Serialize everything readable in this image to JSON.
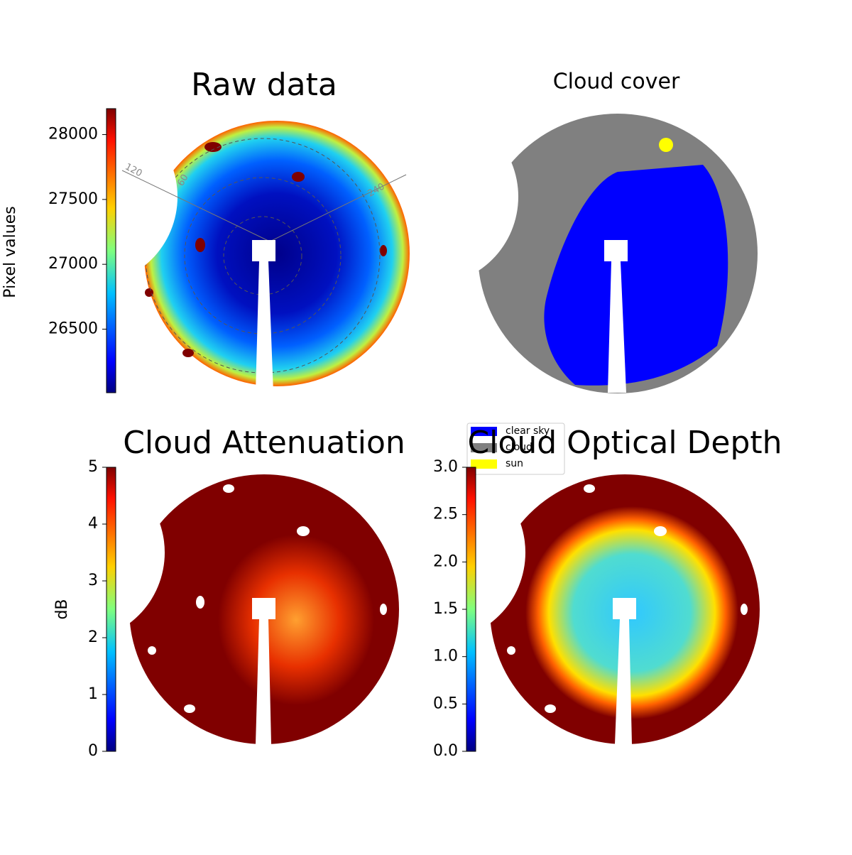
{
  "chart_data": [
    {
      "type": "image",
      "title": "Raw data",
      "colorbar_label": "Pixel values",
      "ylim": [
        26010,
        28200
      ],
      "yticks": [
        26500,
        27000,
        27500,
        28000
      ],
      "annotations": [
        "120",
        "60",
        "240"
      ]
    },
    {
      "type": "image",
      "title": "Cloud cover",
      "series": [
        {
          "name": "clear sky",
          "color": "#0000ff"
        },
        {
          "name": "cloud",
          "color": "#808080"
        },
        {
          "name": "sun",
          "color": "#ffff00"
        }
      ]
    },
    {
      "type": "image",
      "title": "Cloud Attenuation",
      "colorbar_label": "dB",
      "ylim": [
        0,
        5
      ],
      "yticks": [
        0,
        1,
        2,
        3,
        4,
        5
      ]
    },
    {
      "type": "image",
      "title": "Cloud Optical Depth",
      "ylim": [
        0,
        3
      ],
      "yticks": [
        {
          "value": 0,
          "label": "0.0"
        },
        0.5,
        {
          "value": 1,
          "label": "1.0"
        },
        1.5,
        {
          "value": 2,
          "label": "2.0"
        },
        2.5,
        {
          "value": 3,
          "label": "3.0"
        }
      ]
    }
  ]
}
